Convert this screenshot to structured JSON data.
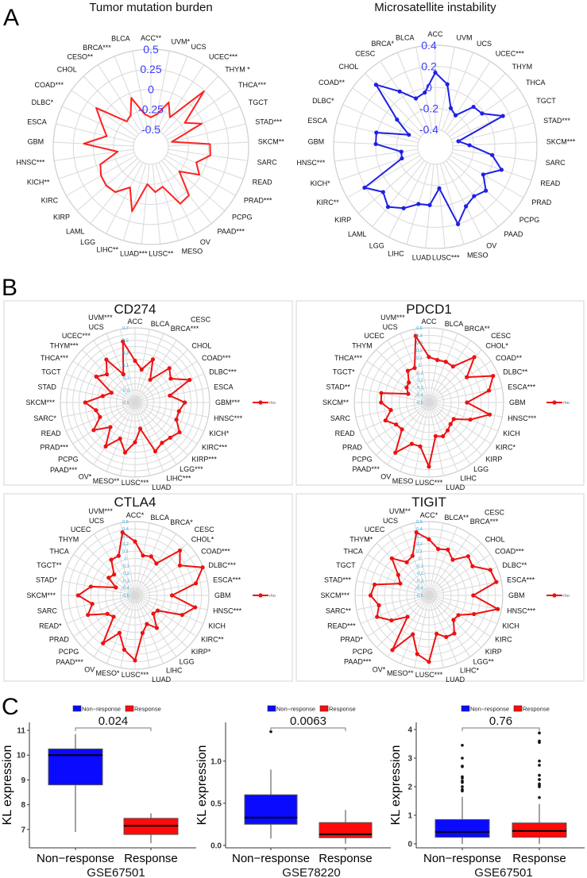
{
  "panels": {
    "a": "A",
    "b": "B",
    "c": "C"
  },
  "chart_data": [
    {
      "type": "radar",
      "title": "Tumor mutation burden",
      "categories": [
        "ACC**",
        "UVM*",
        "UCS",
        "UCEC***",
        "THYM *",
        "THCA***",
        "TGCT",
        "STAD***",
        "SKCM**",
        "SARC",
        "READ",
        "PRAD***",
        "PCPG",
        "PAAD***",
        "OV",
        "MESO",
        "LUSC**",
        "LUAD***",
        "LIHC**",
        "LGG",
        "LAML",
        "KIRP",
        "KIRC",
        "KICH**",
        "HNSC***",
        "GBM",
        "ESCA",
        "DLBC*",
        "COAD***",
        "CHOL",
        "CESO**",
        "BRCA***",
        "BLCA"
      ],
      "values": [
        -0.35,
        -0.3,
        -0.12,
        -0.28,
        0.24,
        -0.2,
        -0.02,
        -0.45,
        0.02,
        0.03,
        -0.12,
        -0.02,
        -0.25,
        0.05,
        0.08,
        -0.2,
        -0.15,
        -0.25,
        0.12,
        -0.15,
        0.0,
        0.02,
        0.0,
        -0.05,
        -0.3,
        0.12,
        -0.15,
        -0.05,
        0.12,
        -0.28,
        -0.25,
        -0.06,
        -0.3
      ],
      "rlim": [
        -0.5,
        0.5
      ],
      "ticks": [
        "0.5",
        "0.25",
        "0",
        "-0.25",
        "-0.5"
      ],
      "color": "#ff2020",
      "tick_color": "#3a3aff"
    },
    {
      "type": "radar",
      "title": "Microsatellite instability",
      "categories": [
        "ACC",
        "UVM",
        "UCS",
        "UCEC***",
        "THYM",
        "THCA",
        "TGCT",
        "STAD***",
        "SKCM***",
        "SARC",
        "READ",
        "PRAD",
        "PCPG",
        "PAAD",
        "OV",
        "MESO",
        "LUSC***",
        "LUAD",
        "LIHC",
        "LGG",
        "LAML",
        "KIRP",
        "KIRC**",
        "KICH*",
        "HNSC***",
        "GBM",
        "ESCA",
        "DLBC*",
        "COAD**",
        "CHOL",
        "CESC",
        "BRCA*",
        "BLCA"
      ],
      "values": [
        0.14,
        0.04,
        -0.17,
        -0.21,
        -0.04,
        -0.02,
        0.14,
        -0.34,
        -0.24,
        -0.02,
        0.1,
        -0.04,
        0.07,
        0.03,
        0.07,
        0.2,
        -0.17,
        -0.01,
        0.0,
        0.09,
        0.16,
        0.09,
        0.21,
        -0.23,
        -0.24,
        0.0,
        0.01,
        -0.29,
        -0.12,
        0.25,
        0.06,
        -0.07,
        -0.04
      ],
      "rlim": [
        -0.4,
        0.4
      ],
      "ticks": [
        "0.4",
        "0.2",
        "0",
        "-0.2",
        "-0.4"
      ],
      "color": "#1f1fe6",
      "tick_color": "#3a3aff"
    },
    {
      "type": "radar",
      "title": "CD274",
      "legend": "rho",
      "categories": [
        "ACC",
        "BLCA",
        "BRCA***",
        "CESC",
        "CHOL",
        "COAD***",
        "DLBC***",
        "ESCA",
        "GBM***",
        "HNSC***",
        "KICH*",
        "KIRC***",
        "KIRP***",
        "LGG***",
        "LIHC***",
        "LUAD",
        "LUSC***",
        "MESO**",
        "OV*",
        "PAAD***",
        "PCPG",
        "PRAD***",
        "READ",
        "SARC*",
        "SKCM***",
        "STAD",
        "TGCT",
        "THCA***",
        "THYM***",
        "UCEC***",
        "UCS",
        "UVM***"
      ],
      "values": [
        0.17,
        0.04,
        0.25,
        -0.06,
        0.28,
        0.19,
        0.45,
        0.07,
        0.3,
        0.22,
        0.22,
        0.36,
        0.3,
        0.28,
        0.35,
        -0.07,
        0.14,
        0.32,
        0.13,
        0.35,
        0.06,
        0.3,
        0.11,
        0.14,
        0.3,
        0.03,
        -0.09,
        0.25,
        0.14,
        0.33,
        -0.01,
        0.5
      ],
      "rlim": [
        -0.5,
        0.7
      ],
      "ticks": [
        "0.7",
        "0.5",
        "0.3",
        "0.1",
        "-0.1",
        "-0.3",
        "-0.5"
      ],
      "color": "#ee1111",
      "tick_color": "#29a9e0"
    },
    {
      "type": "radar",
      "title": "PDCD1",
      "legend": "rho",
      "categories": [
        "ACC",
        "BLCA",
        "BRCA**",
        "CESC",
        "CHOL*",
        "COAD**",
        "DLBC**",
        "ESCA***",
        "GBM",
        "HNSC***",
        "KICH",
        "KIRC*",
        "KIRP",
        "LGG",
        "LIHC",
        "LUAD",
        "LUSC***",
        "MESO",
        "OV",
        "PAAD***",
        "PCPG",
        "PRAD",
        "READ",
        "SARC",
        "SKCM**",
        "STAD**",
        "TGCT*",
        "THCA***",
        "THYM",
        "UCEC",
        "UCS",
        "UVM***"
      ],
      "values": [
        0.11,
        0.08,
        0.09,
        0.08,
        0.36,
        0.11,
        0.43,
        0.32,
        0.01,
        0.33,
        0.1,
        -0.1,
        -0.09,
        -0.05,
        -0.01,
        -0.04,
        0.36,
        0.1,
        0.1,
        0.31,
        0.01,
        0.03,
        0.13,
        0.02,
        0.14,
        0.15,
        -0.2,
        -0.14,
        -0.12,
        0.01,
        0.0,
        0.41
      ],
      "rlim": [
        -0.5,
        0.5
      ],
      "ticks": [
        "0.5",
        "0.4",
        "0.3",
        "0.2",
        "0.1",
        "0",
        "-0.1",
        "-0.2",
        "-0.3",
        "-0.4",
        "-0.5"
      ],
      "color": "#ee1111",
      "tick_color": "#29a9e0"
    },
    {
      "type": "radar",
      "title": "CTLA4",
      "legend": "rho",
      "categories": [
        "ACC*",
        "BLCA",
        "BRCA*",
        "CESC",
        "CHOL*",
        "COAD***",
        "DLBC***",
        "ESCA***",
        "GBM",
        "HNSC***",
        "KICH",
        "KIRC**",
        "KIRP*",
        "LGG",
        "LIHC",
        "LUAD",
        "LUSC***",
        "MESO*",
        "OV",
        "PAAD***",
        "PCPG",
        "PRAD",
        "READ*",
        "SARC",
        "SKCM***",
        "STAD*",
        "TGCT**",
        "THCA",
        "THYM",
        "UCEC",
        "UCS",
        "UVM***"
      ],
      "values": [
        0.23,
        0.05,
        0.07,
        0.02,
        0.36,
        0.23,
        0.49,
        0.34,
        0.0,
        0.33,
        0.19,
        -0.13,
        -0.15,
        0.03,
        -0.08,
        0.02,
        0.38,
        0.25,
        0.05,
        0.28,
        -0.09,
        -0.05,
        0.19,
        0.09,
        0.27,
        0.11,
        -0.22,
        -0.07,
        -0.1,
        0.08,
        0.08,
        0.37
      ],
      "rlim": [
        -0.5,
        0.5
      ],
      "ticks": [
        "0.5",
        "0.4",
        "0.3",
        "0.2",
        "0.1",
        "0",
        "-0.1",
        "-0.2",
        "-0.3",
        "-0.4",
        "-0.5"
      ],
      "color": "#ee1111",
      "tick_color": "#29a9e0"
    },
    {
      "type": "radar",
      "title": "TIGIT",
      "legend": "rho",
      "categories": [
        "ACC*",
        "BLCA**",
        "BRCA***",
        "CESC",
        "CHOL",
        "COAD***",
        "DLBC**",
        "ESCA***",
        "GBM",
        "HNSC***",
        "KICH",
        "KIRC",
        "KIRP",
        "LGG**",
        "LIHC*",
        "LUAD",
        "LUSC***",
        "MESO**",
        "OV*",
        "PAAD***",
        "PCPG",
        "PRAD*",
        "READ***",
        "SARC**",
        "SKCM***",
        "STAD***",
        "TGCT",
        "THCA",
        "THYM*",
        "UCEC",
        "UCS",
        "UVM**"
      ],
      "values": [
        0.26,
        0.14,
        0.17,
        0.08,
        0.25,
        0.21,
        0.4,
        0.43,
        0.1,
        0.45,
        0.16,
        -0.02,
        -0.03,
        0.12,
        0.11,
        0.03,
        0.4,
        0.31,
        0.07,
        0.39,
        -0.09,
        0.11,
        0.26,
        0.19,
        0.29,
        0.25,
        -0.08,
        0.0,
        0.21,
        0.04,
        0.08,
        0.37
      ],
      "rlim": [
        -0.5,
        0.5
      ],
      "ticks": [
        "0.5",
        "0.4",
        "0.3",
        "0.2",
        "0.1",
        "0",
        "-0.1",
        "-0.2",
        "-0.3",
        "-0.4",
        "-0.5"
      ],
      "color": "#ee1111",
      "tick_color": "#29a9e0"
    },
    {
      "type": "box",
      "xlabel": "GSE67501",
      "ylabel": "KL expression",
      "p_value": "0.024",
      "legend": [
        "Non−response",
        "Response"
      ],
      "categories": [
        "Non−response",
        "Response"
      ],
      "colors": [
        "#0a0aff",
        "#ff0a0a"
      ],
      "ylim": [
        6.26,
        11.32
      ],
      "yticks": [
        "7",
        "8",
        "9",
        "10",
        "11"
      ],
      "groups": [
        {
          "min": 6.9,
          "q1": 8.8,
          "median": 10.0,
          "q3": 10.25,
          "max": 10.85,
          "outliers": []
        },
        {
          "min": 6.45,
          "q1": 6.8,
          "median": 7.15,
          "q3": 7.45,
          "max": 7.65,
          "outliers": []
        }
      ]
    },
    {
      "type": "box",
      "xlabel": "GSE78220",
      "ylabel": "KL expression",
      "p_value": "0.0063",
      "legend": [
        "Non−response",
        "Response"
      ],
      "categories": [
        "Non−response",
        "Response"
      ],
      "colors": [
        "#0a0aff",
        "#ff0a0a"
      ],
      "ylim": [
        -0.03,
        1.46
      ],
      "yticks": [
        "0.0",
        "0.5",
        "1.0"
      ],
      "groups": [
        {
          "min": 0.08,
          "q1": 0.25,
          "median": 0.33,
          "q3": 0.6,
          "max": 0.9,
          "outliers": [
            1.35
          ]
        },
        {
          "min": 0.02,
          "q1": 0.09,
          "median": 0.13,
          "q3": 0.27,
          "max": 0.42,
          "outliers": []
        }
      ]
    },
    {
      "type": "box",
      "xlabel": "GSE67501",
      "ylabel": "KL expression",
      "p_value": "0.76",
      "legend": [
        "Non−response",
        "Response"
      ],
      "categories": [
        "Non−response",
        "Response"
      ],
      "colors": [
        "#0a0aff",
        "#ff0a0a"
      ],
      "ylim": [
        -0.14,
        4.25
      ],
      "yticks": [
        "0",
        "1",
        "2",
        "3",
        "4"
      ],
      "groups": [
        {
          "min": 0.0,
          "q1": 0.23,
          "median": 0.42,
          "q3": 0.85,
          "max": 1.65,
          "outliers": [
            1.85,
            1.9,
            2.0,
            2.15,
            2.2,
            2.3,
            2.35,
            2.7,
            2.72,
            3.0,
            3.45
          ]
        },
        {
          "min": 0.0,
          "q1": 0.23,
          "median": 0.45,
          "q3": 0.73,
          "max": 1.4,
          "outliers": [
            1.62,
            2.0,
            2.05,
            2.1,
            2.25,
            2.4,
            2.75,
            2.9,
            3.55,
            3.6,
            3.88
          ]
        }
      ]
    }
  ]
}
